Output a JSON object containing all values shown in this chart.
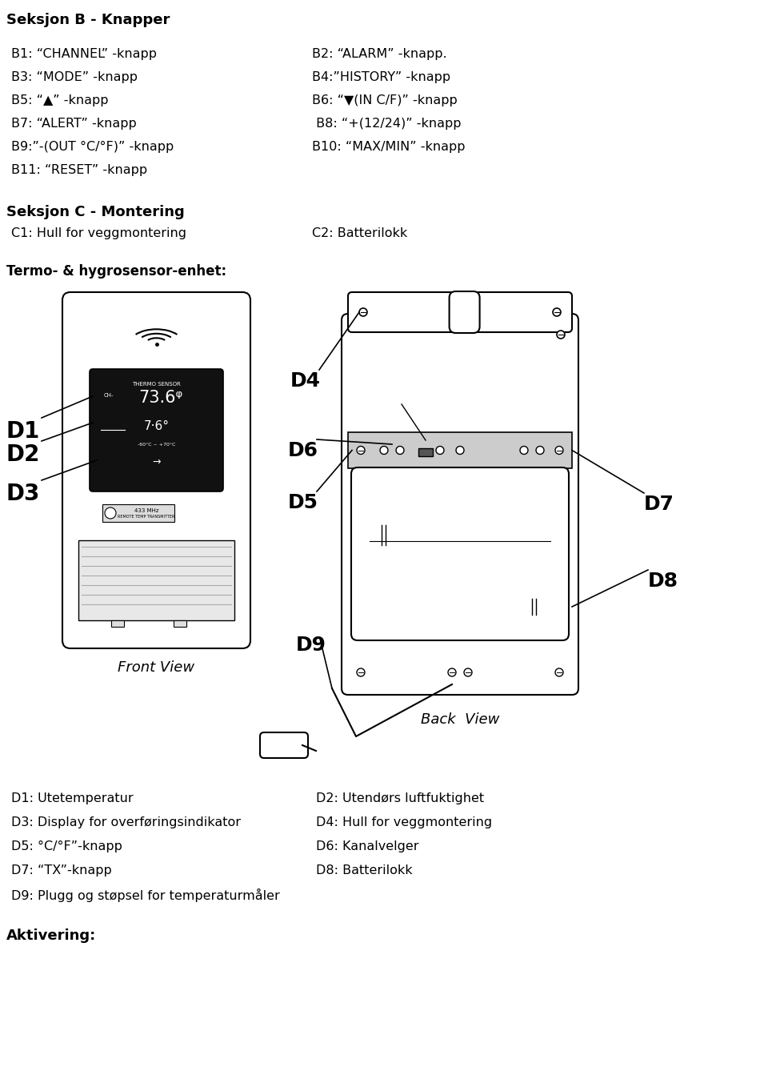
{
  "title_seksjon_b": "Seksjon B - Knapper",
  "b_items_left": [
    "B1: “CHANNEL” -knapp",
    "B3: “MODE” -knapp",
    "B5: “▲” -knapp",
    "B7: “ALERT” -knapp",
    "B9:”-(OUT °C/°F)” -knapp",
    "B11: “RESET” -knapp"
  ],
  "b_items_right": [
    "B2: “ALARM” -knapp.",
    "B4:”HISTORY” -knapp",
    "B6: “▼(IN C/F)” -knapp",
    " B8: “+(12/24)” -knapp",
    "B10: “MAX/MIN” -knapp",
    ""
  ],
  "title_seksjon_c": "Seksjon C - Montering",
  "c_items_left": [
    "C1: Hull for veggmontering"
  ],
  "c_items_right": [
    "C2: Batterilokk"
  ],
  "termo_label": "Termo- & hygrosensor-enhet:",
  "front_view_label": "Front View",
  "back_view_label": "Back  View",
  "d_items_left": [
    "D1: Utetemperatur",
    "D3: Display for overføringsindikator",
    "D5: °C/°F”-knapp",
    "D7: “TX”-knapp",
    "D9: Plugg og støpsel for temperaturmåler"
  ],
  "d_items_right": [
    "D2: Utendørs luftfuktighet",
    "D4: Hull for veggmontering",
    "D6: Kanalvelger",
    "D8: Batterilokk"
  ],
  "aktivering_label": "Aktivering:",
  "bg_color": "#ffffff"
}
